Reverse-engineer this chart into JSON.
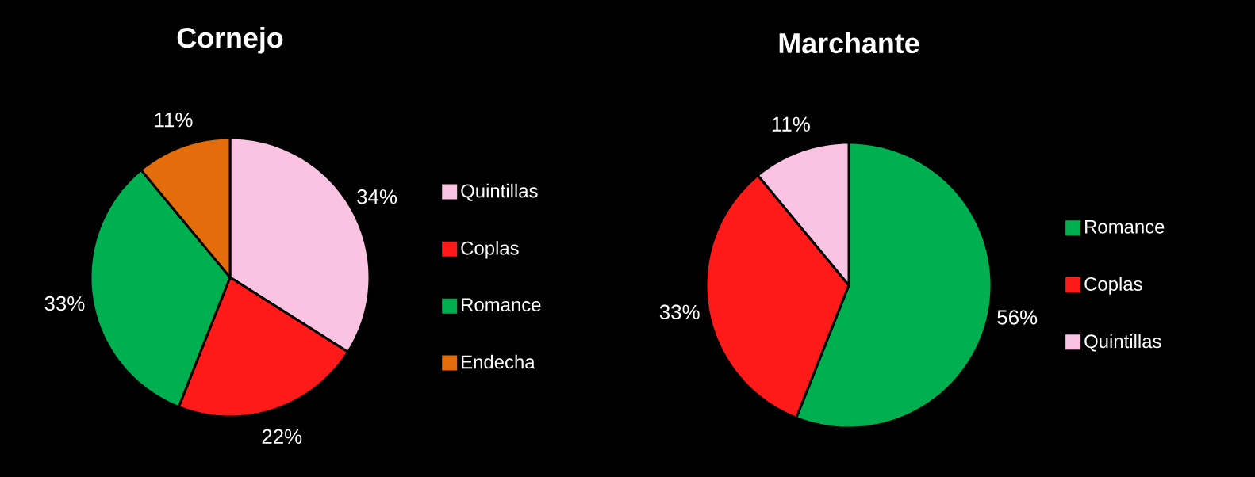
{
  "chart_data": [
    {
      "type": "pie",
      "title": "Cornejo",
      "categories": [
        "Quintillas",
        "Coplas",
        "Romance",
        "Endecha"
      ],
      "values": [
        34,
        22,
        33,
        11
      ],
      "colors": [
        "#f9c3e1",
        "#ff1a1a",
        "#00b050",
        "#e46c0a"
      ],
      "value_labels": [
        "34%",
        "22%",
        "33%",
        "11%"
      ],
      "legend": "right"
    },
    {
      "type": "pie",
      "title": "Marchante",
      "categories": [
        "Romance",
        "Coplas",
        "Quintillas"
      ],
      "values": [
        56,
        33,
        11
      ],
      "colors": [
        "#00b050",
        "#ff1a1a",
        "#f9c3e1"
      ],
      "value_labels": [
        "56%",
        "33%",
        "11%"
      ],
      "legend": "right"
    }
  ]
}
